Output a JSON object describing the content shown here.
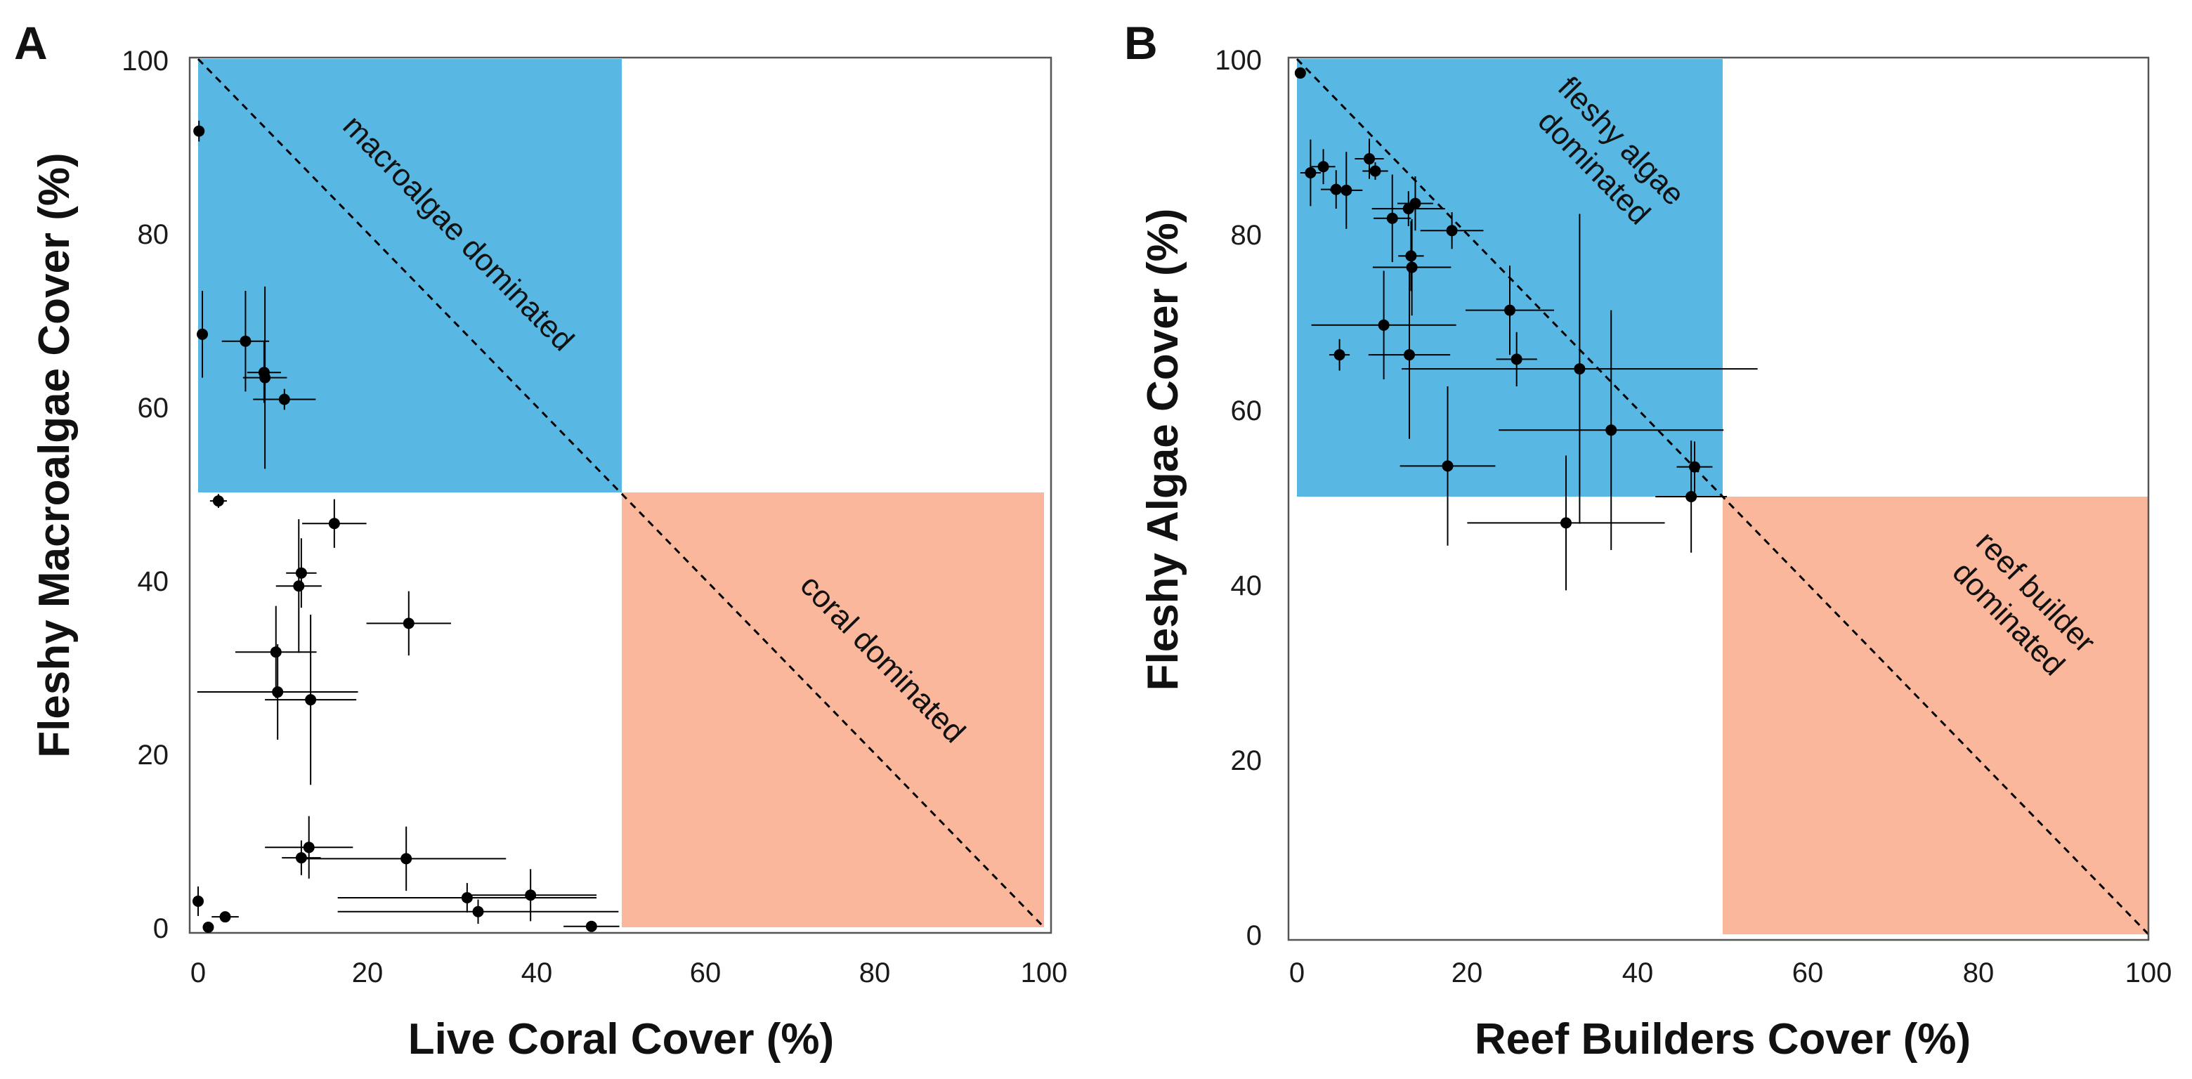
{
  "chart_data": [
    {
      "type": "scatter",
      "panel_label": "A",
      "xlabel": "Live Coral Cover (%)",
      "ylabel": "Fleshy Macroalgae Cover (%)",
      "xlim": [
        0,
        100
      ],
      "ylim": [
        0,
        100
      ],
      "ticks": [
        0,
        20,
        40,
        60,
        80,
        100
      ],
      "regions": [
        {
          "name": "algae-dominated-region",
          "x": [
            0,
            50
          ],
          "y": [
            50,
            100
          ],
          "color": "#58B8E3"
        },
        {
          "name": "coral-dominated-region",
          "x": [
            50,
            100
          ],
          "y": [
            0,
            50
          ],
          "color": "#FAB79B"
        }
      ],
      "annotations": [
        "macroalgae dominated",
        "coral dominated"
      ],
      "points": [
        {
          "x": 0.1,
          "y": 91.7,
          "xerr": 0.6,
          "yerr": 1.2
        },
        {
          "x": 0.5,
          "y": 68.3,
          "xerr": 0.5,
          "yerr": 5.0
        },
        {
          "x": 5.6,
          "y": 67.5,
          "xerr": 2.8,
          "yerr": 5.8
        },
        {
          "x": 7.8,
          "y": 63.9,
          "xerr": 2.0,
          "yerr": 3.5
        },
        {
          "x": 7.9,
          "y": 63.3,
          "xerr": 2.6,
          "yerr": 10.5
        },
        {
          "x": 10.2,
          "y": 60.8,
          "xerr": 3.7,
          "yerr": 1.2
        },
        {
          "x": 2.4,
          "y": 49.1,
          "xerr": 1.0,
          "yerr": 0.8
        },
        {
          "x": 16.1,
          "y": 46.5,
          "xerr": 3.8,
          "yerr": 2.8
        },
        {
          "x": 12.2,
          "y": 40.8,
          "xerr": 1.8,
          "yerr": 4.0
        },
        {
          "x": 11.9,
          "y": 39.3,
          "xerr": 2.7,
          "yerr": 7.7
        },
        {
          "x": 24.9,
          "y": 35.0,
          "xerr": 5.0,
          "yerr": 3.7
        },
        {
          "x": 9.2,
          "y": 31.7,
          "xerr": 4.8,
          "yerr": 5.3
        },
        {
          "x": 9.4,
          "y": 27.1,
          "xerr": 9.5,
          "yerr": 5.5
        },
        {
          "x": 13.3,
          "y": 26.2,
          "xerr": 5.4,
          "yerr": 9.8
        },
        {
          "x": 13.1,
          "y": 9.2,
          "xerr": 5.2,
          "yerr": 3.6
        },
        {
          "x": 12.2,
          "y": 8.0,
          "xerr": 2.3,
          "yerr": 2.0
        },
        {
          "x": 24.6,
          "y": 7.9,
          "xerr": 11.8,
          "yerr": 3.7
        },
        {
          "x": 39.3,
          "y": 3.7,
          "xerr": 7.8,
          "yerr": 3.0
        },
        {
          "x": 31.8,
          "y": 3.4,
          "xerr": 15.3,
          "yerr": 1.7
        },
        {
          "x": 33.1,
          "y": 1.8,
          "xerr": 16.6,
          "yerr": 1.4
        },
        {
          "x": 46.5,
          "y": 0.1,
          "xerr": 3.3,
          "yerr": 0.3
        },
        {
          "x": 0.0,
          "y": 3.0,
          "xerr": 0.5,
          "yerr": 1.7
        },
        {
          "x": 3.2,
          "y": 1.2,
          "xerr": 1.6,
          "yerr": 0.4
        },
        {
          "x": 1.2,
          "y": 0.0,
          "xerr": 0.3,
          "yerr": 0.3
        }
      ]
    },
    {
      "type": "scatter",
      "panel_label": "B",
      "xlabel": "Reef Builders Cover (%)",
      "ylabel": "Fleshy Algae Cover (%)",
      "xlim": [
        0,
        100
      ],
      "ylim": [
        0,
        100
      ],
      "ticks": [
        0,
        20,
        40,
        60,
        80,
        100
      ],
      "regions": [
        {
          "name": "algae-dominated-region",
          "x": [
            0,
            50
          ],
          "y": [
            50,
            100
          ],
          "color": "#58B8E3"
        },
        {
          "name": "reef-builder-dominated-region",
          "x": [
            50,
            100
          ],
          "y": [
            0,
            50
          ],
          "color": "#FAB79B"
        }
      ],
      "annotations": [
        "fleshy algae\ndominated",
        "reef builder\ndominated"
      ],
      "points": [
        {
          "x": 0.4,
          "y": 98.4,
          "xerr": 0.3,
          "yerr": 0.5
        },
        {
          "x": 1.6,
          "y": 87.0,
          "xerr": 1.2,
          "yerr": 3.8
        },
        {
          "x": 3.1,
          "y": 87.7,
          "xerr": 1.4,
          "yerr": 2.0
        },
        {
          "x": 4.6,
          "y": 85.1,
          "xerr": 1.8,
          "yerr": 2.2
        },
        {
          "x": 5.8,
          "y": 85.0,
          "xerr": 1.9,
          "yerr": 4.4
        },
        {
          "x": 8.5,
          "y": 88.6,
          "xerr": 1.7,
          "yerr": 2.3
        },
        {
          "x": 9.2,
          "y": 87.2,
          "xerr": 1.5,
          "yerr": 1.0
        },
        {
          "x": 11.2,
          "y": 81.8,
          "xerr": 2.2,
          "yerr": 5.0
        },
        {
          "x": 13.1,
          "y": 82.9,
          "xerr": 4.3,
          "yerr": 2.0
        },
        {
          "x": 13.9,
          "y": 83.5,
          "xerr": 2.1,
          "yerr": 3.1
        },
        {
          "x": 18.2,
          "y": 80.4,
          "xerr": 3.7,
          "yerr": 2.1
        },
        {
          "x": 13.4,
          "y": 77.5,
          "xerr": 1.5,
          "yerr": 4.0
        },
        {
          "x": 13.5,
          "y": 76.2,
          "xerr": 4.6,
          "yerr": 5.5
        },
        {
          "x": 25.0,
          "y": 71.3,
          "xerr": 5.2,
          "yerr": 5.1
        },
        {
          "x": 10.2,
          "y": 69.6,
          "xerr": 8.5,
          "yerr": 6.2
        },
        {
          "x": 5.0,
          "y": 66.2,
          "xerr": 1.2,
          "yerr": 1.8
        },
        {
          "x": 13.2,
          "y": 66.2,
          "xerr": 4.8,
          "yerr": 9.6
        },
        {
          "x": 25.8,
          "y": 65.7,
          "xerr": 2.4,
          "yerr": 3.1
        },
        {
          "x": 33.2,
          "y": 64.6,
          "xerr": 20.9,
          "yerr": 17.7
        },
        {
          "x": 36.9,
          "y": 57.6,
          "xerr": 13.2,
          "yerr": 13.7
        },
        {
          "x": 17.7,
          "y": 53.5,
          "xerr": 5.6,
          "yerr": 9.1
        },
        {
          "x": 46.7,
          "y": 53.4,
          "xerr": 2.1,
          "yerr": 2.9
        },
        {
          "x": 46.3,
          "y": 50.0,
          "xerr": 4.2,
          "yerr": 6.4
        },
        {
          "x": 31.6,
          "y": 47.0,
          "xerr": 11.6,
          "yerr": 7.7
        }
      ]
    }
  ]
}
